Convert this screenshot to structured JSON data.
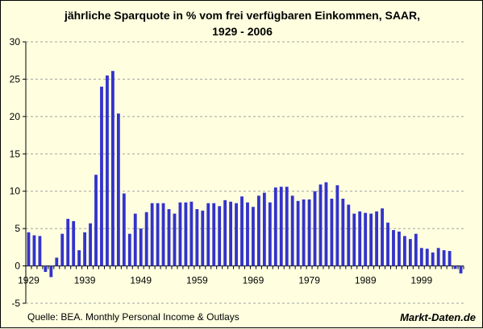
{
  "chart_data": {
    "type": "bar",
    "title": "jährliche Sparquote in % vom frei verfügbaren Einkommen, SAAR,",
    "subtitle": "1929 - 2006",
    "xlabel": "",
    "ylabel": "",
    "ylim": [
      -5,
      30
    ],
    "yticks": [
      -5,
      0,
      5,
      10,
      15,
      20,
      25,
      30
    ],
    "xtick_labels": [
      "1929",
      "1939",
      "1949",
      "1959",
      "1969",
      "1979",
      "1989",
      "1999"
    ],
    "grid": true,
    "bar_color": "#3333cc",
    "categories": [
      1929,
      1930,
      1931,
      1932,
      1933,
      1934,
      1935,
      1936,
      1937,
      1938,
      1939,
      1940,
      1941,
      1942,
      1943,
      1944,
      1945,
      1946,
      1947,
      1948,
      1949,
      1950,
      1951,
      1952,
      1953,
      1954,
      1955,
      1956,
      1957,
      1958,
      1959,
      1960,
      1961,
      1962,
      1963,
      1964,
      1965,
      1966,
      1967,
      1968,
      1969,
      1970,
      1971,
      1972,
      1973,
      1974,
      1975,
      1976,
      1977,
      1978,
      1979,
      1980,
      1981,
      1982,
      1983,
      1984,
      1985,
      1986,
      1987,
      1988,
      1989,
      1990,
      1991,
      1992,
      1993,
      1994,
      1995,
      1996,
      1997,
      1998,
      1999,
      2000,
      2001,
      2002,
      2003,
      2004,
      2005,
      2006
    ],
    "values": [
      4.5,
      4.1,
      4.0,
      -0.8,
      -1.5,
      1.1,
      4.3,
      6.3,
      6.0,
      2.1,
      4.5,
      5.7,
      12.2,
      24.0,
      25.5,
      26.1,
      20.4,
      9.7,
      4.3,
      7.0,
      5.0,
      7.2,
      8.4,
      8.4,
      8.4,
      7.6,
      7.0,
      8.5,
      8.5,
      8.6,
      7.6,
      7.4,
      8.4,
      8.4,
      8.0,
      8.8,
      8.6,
      8.4,
      9.3,
      8.5,
      7.9,
      9.4,
      9.8,
      8.5,
      10.5,
      10.6,
      10.6,
      9.4,
      8.7,
      8.9,
      8.9,
      10.0,
      10.9,
      11.2,
      9.0,
      10.8,
      9.0,
      8.2,
      7.0,
      7.3,
      7.1,
      7.0,
      7.3,
      7.7,
      5.8,
      4.8,
      4.6,
      4.0,
      3.6,
      4.3,
      2.4,
      2.3,
      1.8,
      2.4,
      2.1,
      2.0,
      -0.4,
      -1.0
    ]
  },
  "footer": {
    "source": "Quelle: BEA. Monthly Personal Income & Outlays",
    "brand": "Markt-Daten.de"
  }
}
